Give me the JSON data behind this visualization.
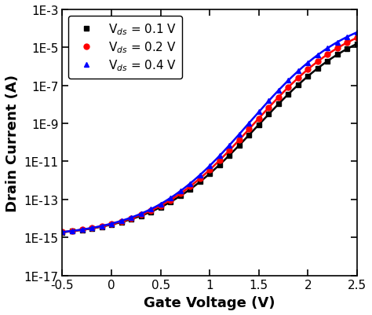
{
  "xlabel": "Gate Voltage (V)",
  "ylabel": "Drain Current (A)",
  "xlim": [
    -0.5,
    2.5
  ],
  "ylim": [
    1e-17,
    0.001
  ],
  "yticks": [
    1e-17,
    1e-15,
    1e-13,
    1e-11,
    1e-09,
    1e-07,
    1e-05,
    0.001
  ],
  "ytick_labels": [
    "1E-17",
    "1E-15",
    "1E-13",
    "1E-11",
    "1E-9",
    "1E-7",
    "1E-5",
    "1E-3"
  ],
  "xticks": [
    -0.5,
    0.0,
    0.5,
    1.0,
    1.5,
    2.0,
    2.5
  ],
  "series": [
    {
      "label": "V$_{ds}$ = 0.1 V",
      "color": "#000000",
      "marker": "s",
      "log_floor": -15.0,
      "log_sat": -3.3,
      "vth": 0.42,
      "subthreshold_slope": 5.5,
      "above_slope": 5.5,
      "sat_vg": 2.5
    },
    {
      "label": "V$_{ds}$ = 0.2 V",
      "color": "#ff0000",
      "marker": "o",
      "log_floor": -15.0,
      "log_sat": -3.1,
      "vth": 0.4,
      "subthreshold_slope": 5.7,
      "above_slope": 5.7,
      "sat_vg": 2.5
    },
    {
      "label": "V$_{ds}$ = 0.4 V",
      "color": "#0000ff",
      "marker": "^",
      "log_floor": -15.0,
      "log_sat": -2.95,
      "vth": 0.38,
      "subthreshold_slope": 5.9,
      "above_slope": 5.9,
      "sat_vg": 2.5
    }
  ],
  "n_markers": 31,
  "legend_loc": "upper left",
  "figsize": [
    4.74,
    4.02
  ],
  "dpi": 100,
  "background_color": "#ffffff",
  "xlabel_fontsize": 13,
  "ylabel_fontsize": 13,
  "tick_fontsize": 11,
  "legend_fontsize": 11,
  "linewidth": 1.8,
  "markersize": 5
}
